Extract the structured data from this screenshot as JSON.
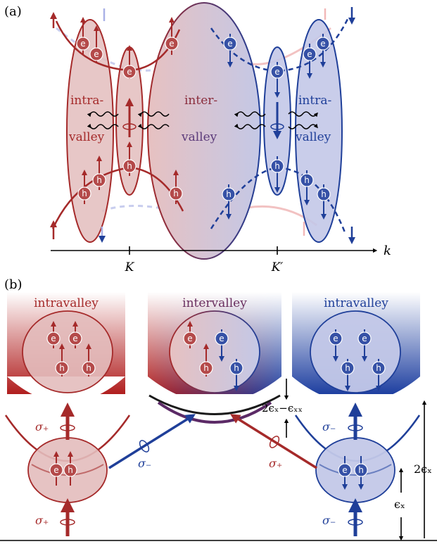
{
  "panel_a": {
    "label": "(a)",
    "axis_label": "k",
    "tick_K": "K",
    "tick_Kprime": "K′",
    "intra_left": [
      "intra-",
      "valley"
    ],
    "inter": [
      "inter-",
      "valley"
    ],
    "intra_right": [
      "intra-",
      "valley"
    ]
  },
  "panel_b": {
    "label": "(b)",
    "box_left": "intravalley",
    "box_mid": "intervalley",
    "box_right": "intravalley",
    "sigma_plus": "σ₊",
    "sigma_minus": "σ₋",
    "energy_diff": "2ϵₓ−ϵₓₓ",
    "energy_2ex": "2ϵₓ",
    "energy_ex": "ϵₓ"
  },
  "particles": {
    "electron": "e",
    "hole": "h"
  },
  "colors": {
    "red": "#a52a2a",
    "blue": "#1f3f99",
    "red_fill": "#e8c4c4",
    "blue_fill": "#c7cbe8"
  }
}
